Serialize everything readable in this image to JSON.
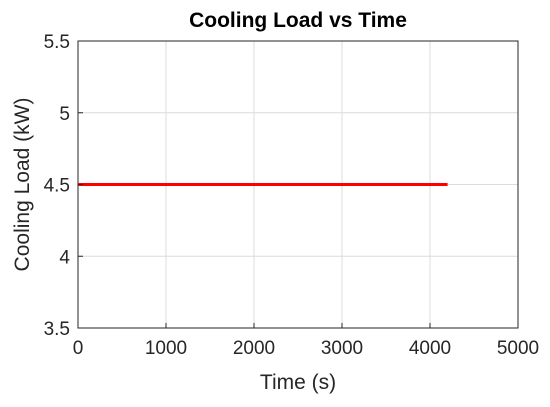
{
  "chart_data": {
    "type": "line",
    "title": "Cooling Load vs Time",
    "xlabel": "Time (s)",
    "ylabel": "Cooling Load (kW)",
    "xlim": [
      0,
      5000
    ],
    "ylim": [
      3.5,
      5.5
    ],
    "xticks": [
      0,
      1000,
      2000,
      3000,
      4000,
      5000
    ],
    "yticks": [
      3.5,
      4,
      4.5,
      5,
      5.5
    ],
    "xtick_labels": [
      "0",
      "1000",
      "2000",
      "3000",
      "4000",
      "5000"
    ],
    "ytick_labels": [
      "3.5",
      "4",
      "4.5",
      "5",
      "5.5"
    ],
    "grid": true,
    "legend": "none",
    "series": [
      {
        "color": "#ff0000",
        "x": [
          0,
          4200
        ],
        "y": [
          4.5,
          4.5
        ]
      }
    ]
  }
}
